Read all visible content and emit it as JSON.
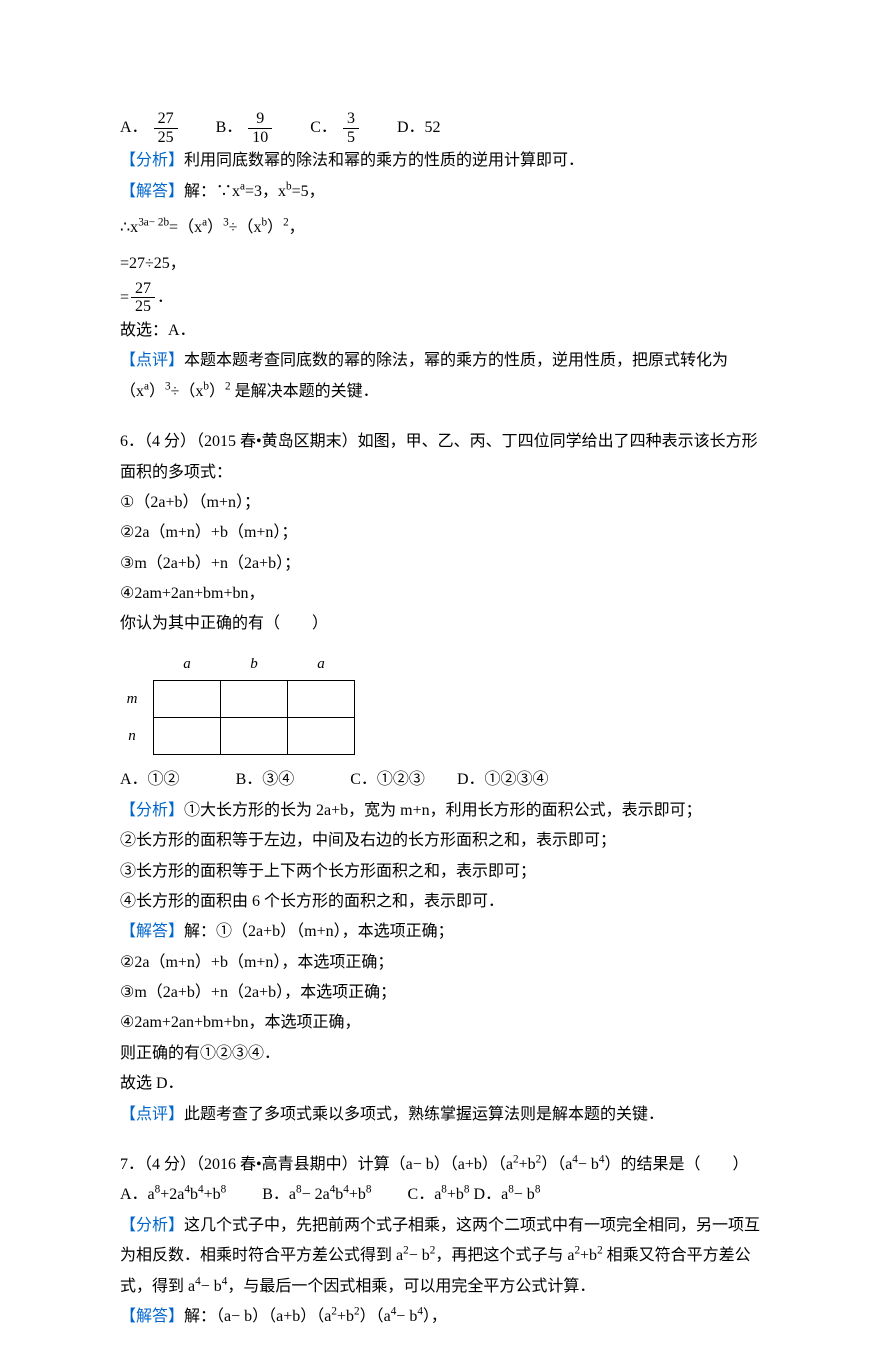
{
  "q5": {
    "options": {
      "A_label": "A．",
      "A_num": "27",
      "A_den": "25",
      "B_label": "B．",
      "B_num": "9",
      "B_den": "10",
      "C_label": "C．",
      "C_num": "3",
      "C_den": "5",
      "D_label": "D．52"
    },
    "analysis_label": "【分析】",
    "analysis": "利用同底数幂的除法和幂的乘方的性质的逆用计算即可．",
    "solve_label": "【解答】",
    "solve_prefix": "解：∵x",
    "solve_r1_mid": "=3，x",
    "solve_r1_end": "=5，",
    "solve_r2_pre": "∴x",
    "solve_r2_exp": "3a− 2b",
    "solve_r2_mid": "=（x",
    "solve_r2_a": "a",
    "solve_r2_mid2": "）",
    "solve_r2_3": "3",
    "solve_r2_div": "÷（x",
    "solve_r2_b": "b",
    "solve_r2_mid3": "）",
    "solve_r2_2": "2",
    "solve_r2_end": "，",
    "solve_r3": "=27÷25，",
    "solve_r4_eq": "=",
    "solve_r4_num": "27",
    "solve_r4_den": "25",
    "solve_r4_end": "．",
    "pick": "故选：A．",
    "remark_label": "【点评】",
    "remark_1": "本题本题考查同底数的幂的除法，幂的乘方的性质，逆用性质，把原式转化为（x",
    "remark_sup1": "a",
    "remark_2": "）",
    "remark_sup2": "3",
    "remark_3": "÷（x",
    "remark_sup3": "b",
    "remark_4": "）",
    "remark_sup4": "2",
    "remark_5": " 是解决本题的关键．"
  },
  "q6": {
    "title": "6．（4 分）（2015 春•黄岛区期末）如图，甲、乙、丙、丁四位同学给出了四种表示该长方形面积的多项式：",
    "o1": "①（2a+b）（m+n）；",
    "o2": "②2a（m+n）+b（m+n）；",
    "o3": "③m（2a+b）+n（2a+b）；",
    "o4": "④2am+2an+bm+bn，",
    "ask": "你认为其中正确的有（　　）",
    "diagram": {
      "col_a1": "a",
      "col_b": "b",
      "col_a2": "a",
      "row_m": "m",
      "row_n": "n"
    },
    "optsA": "A．①②",
    "optsB": "B．③④",
    "optsC": "C．①②③",
    "optsD": "D．①②③④",
    "analysis_label": "【分析】",
    "a1": "①大长方形的长为 2a+b，宽为 m+n，利用长方形的面积公式，表示即可；",
    "a2": "②长方形的面积等于左边，中间及右边的长方形面积之和，表示即可；",
    "a3": "③长方形的面积等于上下两个长方形面积之和，表示即可；",
    "a4": "④长方形的面积由 6 个长方形的面积之和，表示即可．",
    "solve_label": "【解答】",
    "s1": "解：①（2a+b）（m+n），本选项正确；",
    "s2": "②2a（m+n）+b（m+n），本选项正确；",
    "s3": "③m（2a+b）+n（2a+b），本选项正确；",
    "s4": "④2am+2an+bm+bn，本选项正确，",
    "s5": "则正确的有①②③④．",
    "pick": "故选 D．",
    "remark_label": "【点评】",
    "remark": "此题考查了多项式乘以多项式，熟练掌握运算法则是解本题的关键．"
  },
  "q7": {
    "title_pre": "7．（4 分）（2016 春•高青县期中）计算（a− b）（a+b）（a",
    "t_e1": "2",
    "t_mid1": "+b",
    "t_e2": "2",
    "t_mid2": "）（a",
    "t_e3": "4",
    "t_mid3": "− b",
    "t_e4": "4",
    "t_end": "）的结果是（　　）",
    "oA_pre": "A．a",
    "oA_e1": "8",
    "oA_m1": "+2a",
    "oA_e2": "4",
    "oA_m2": "b",
    "oA_e3": "4",
    "oA_m3": "+b",
    "oA_e4": "8",
    "oB_pre": "B．a",
    "oB_e1": "8",
    "oB_m1": "− 2a",
    "oB_e2": "4",
    "oB_m2": "b",
    "oB_e3": "4",
    "oB_m3": "+b",
    "oB_e4": "8",
    "oC_pre": "C．a",
    "oC_e1": "8",
    "oC_m1": "+b",
    "oC_e2": "8",
    "oD_pre": "D．a",
    "oD_e1": "8",
    "oD_m1": "− b",
    "oD_e2": "8",
    "analysis_label": "【分析】",
    "a_1": "这几个式子中，先把前两个式子相乘，这两个二项式中有一项完全相同，另一项互为相反数．相乘时符合平方差公式得到 a",
    "a_e1": "2",
    "a_2": "− b",
    "a_e2": "2",
    "a_3": "，再把这个式子与 a",
    "a_e3": "2",
    "a_4": "+b",
    "a_e4": "2",
    "a_5": " 相乘又符合平方差公式，得到 a",
    "a_e5": "4",
    "a_6": "− b",
    "a_e6": "4",
    "a_7": "，与最后一个因式相乘，可以用完全平方公式计算．",
    "solve_label": "【解答】",
    "s_pre": "解：（a− b）（a+b）（a",
    "s_e1": "2",
    "s_m1": "+b",
    "s_e2": "2",
    "s_m2": "）（a",
    "s_e3": "4",
    "s_m3": "− b",
    "s_e4": "4",
    "s_end": "），"
  },
  "colors": {
    "text": "#000000",
    "link": "#0066cc",
    "background": "#ffffff"
  }
}
